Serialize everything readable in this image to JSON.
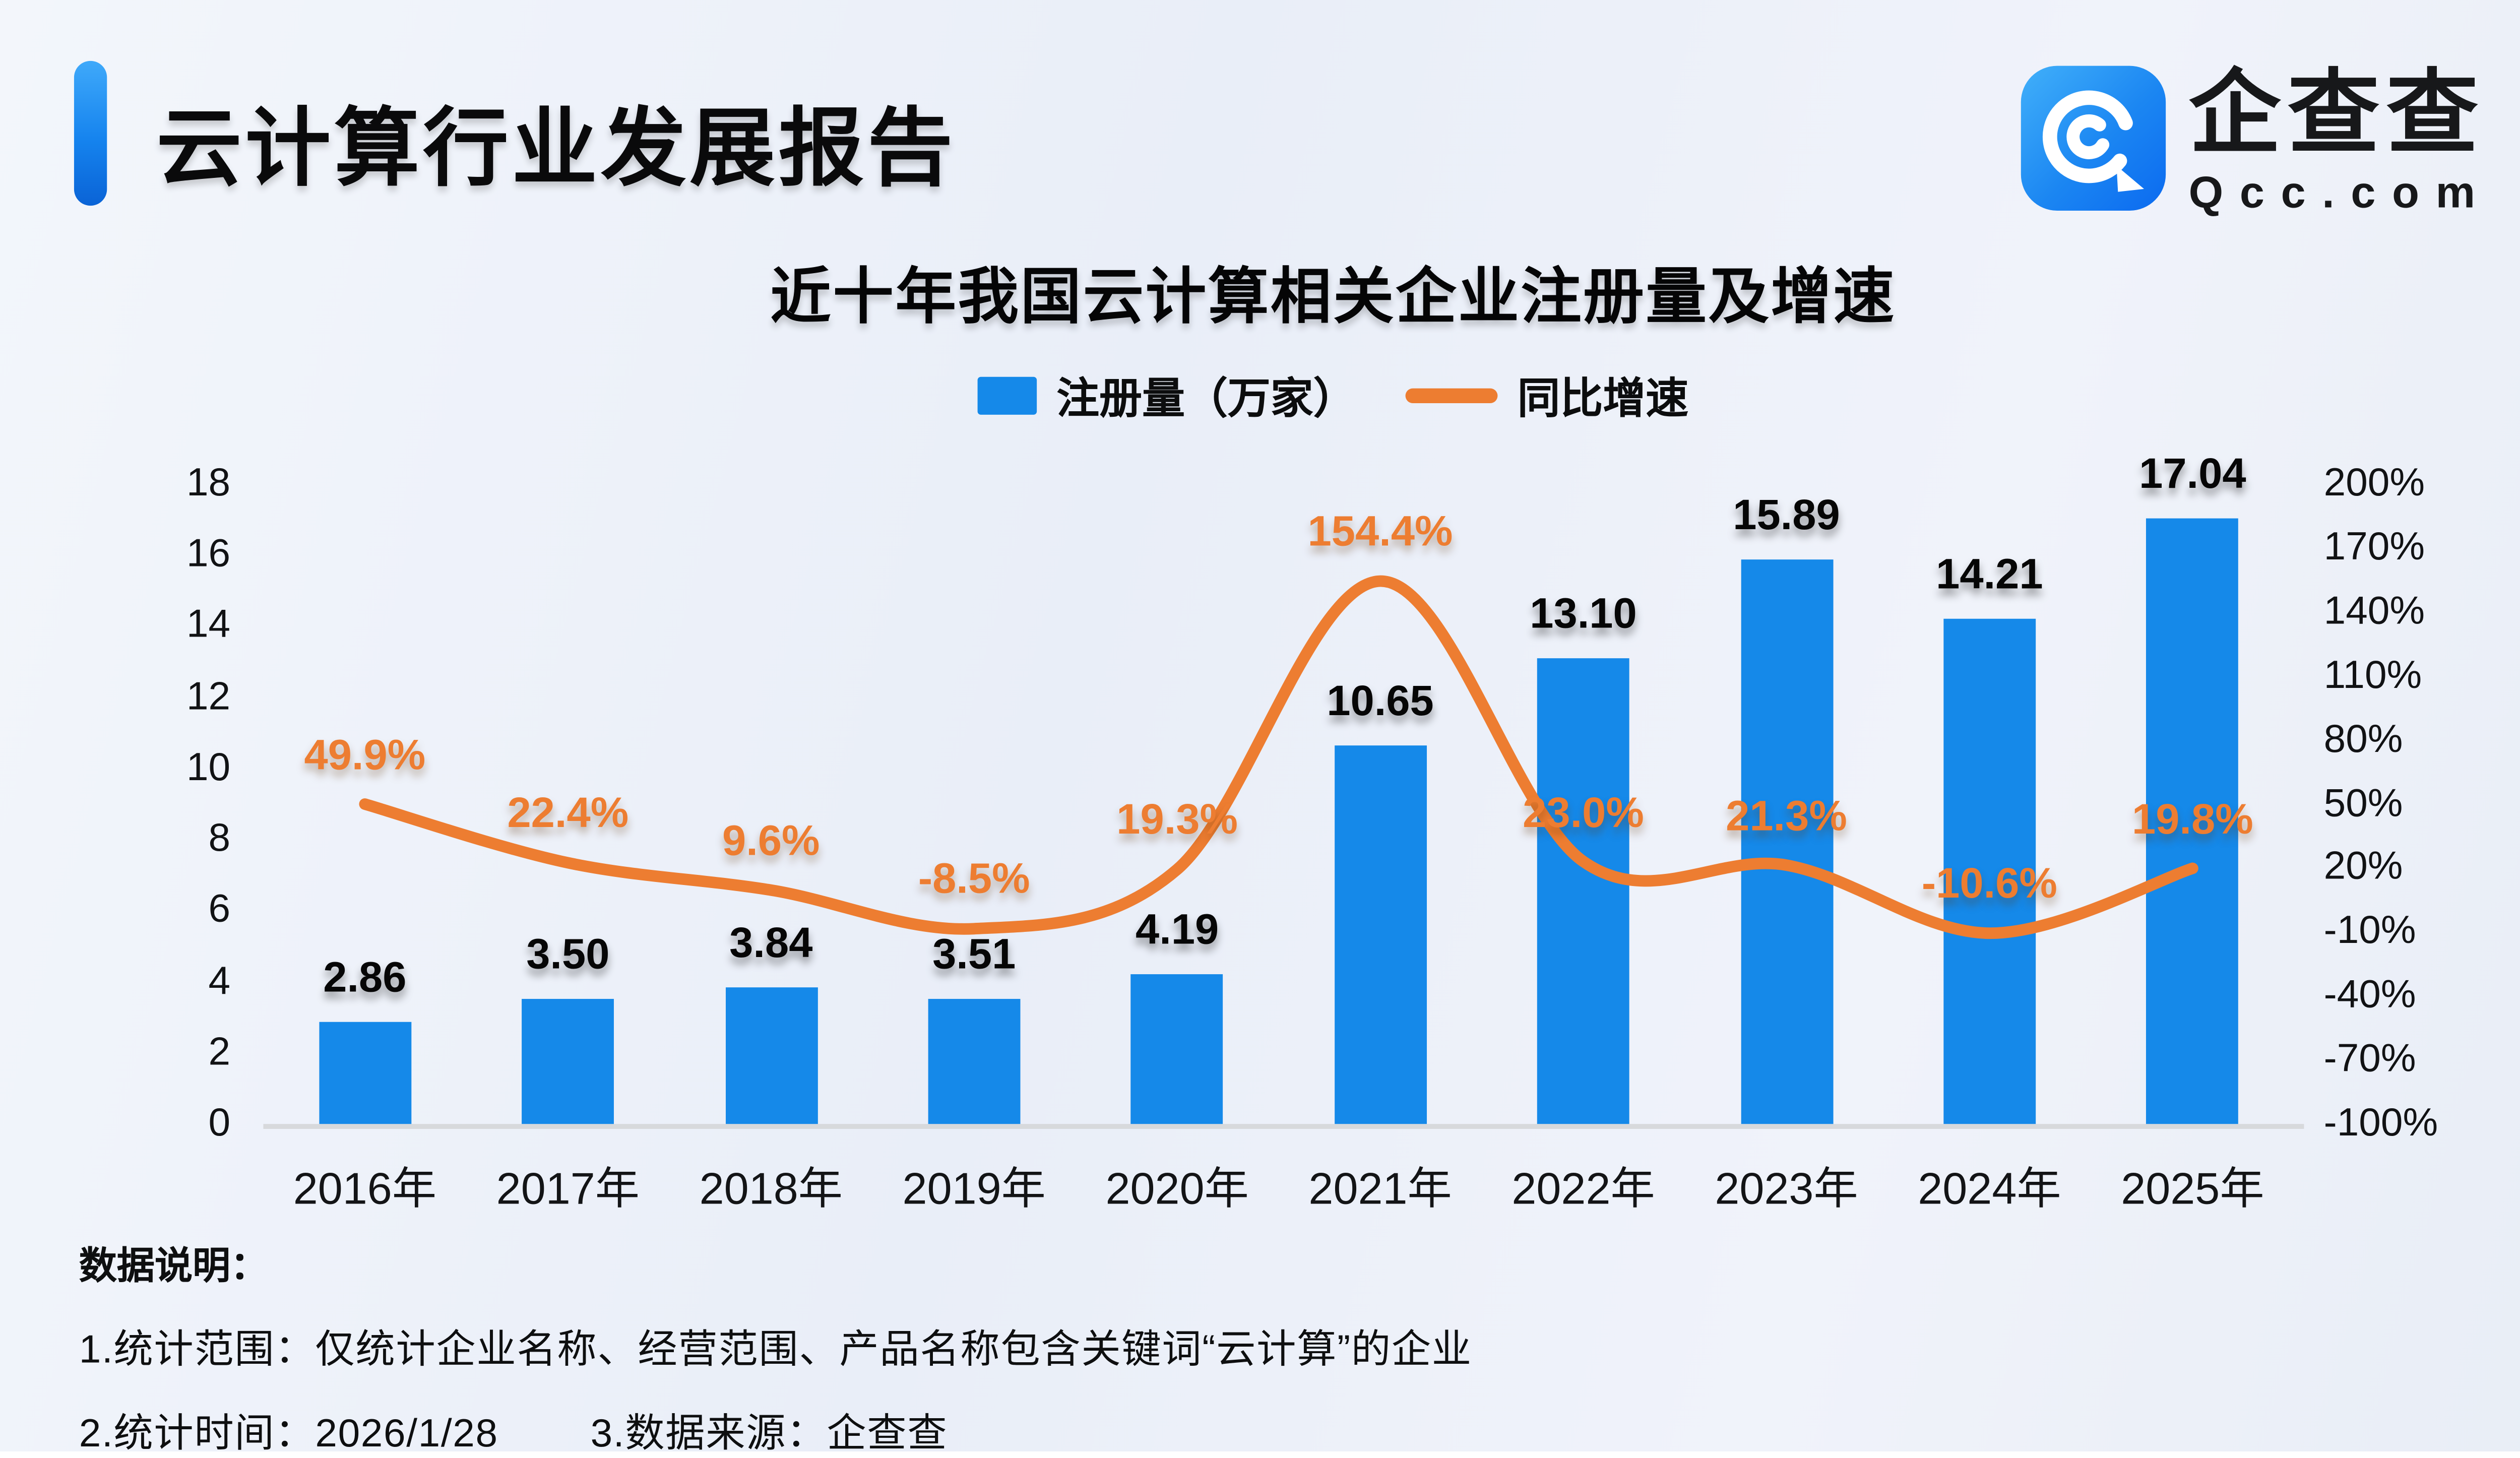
{
  "header": {
    "title": "云计算行业发展报告",
    "logo": {
      "brand": "企查查",
      "domain": "Qcc.com"
    }
  },
  "chart": {
    "title": "近十年我国云计算相关企业注册量及增速",
    "legend": [
      {
        "label": "注册量（万家）",
        "marker": "bar-swatch"
      },
      {
        "label": "同比增速",
        "marker": "line-swatch"
      }
    ]
  },
  "chart_data": {
    "type": "bar",
    "title": "近十年我国云计算相关企业注册量及增速",
    "categories": [
      "2016年",
      "2017年",
      "2018年",
      "2019年",
      "2020年",
      "2021年",
      "2022年",
      "2023年",
      "2024年",
      "2025年"
    ],
    "series": [
      {
        "name": "注册量（万家）",
        "type": "bar",
        "color": "#1589e9",
        "values": [
          2.86,
          3.5,
          3.84,
          3.51,
          4.19,
          10.65,
          13.1,
          15.89,
          14.21,
          17.04
        ],
        "labels": [
          "2.86",
          "3.50",
          "3.84",
          "3.51",
          "4.19",
          "10.65",
          "13.10",
          "15.89",
          "14.21",
          "17.04"
        ]
      },
      {
        "name": "同比增速",
        "type": "line",
        "color": "#ed7d31",
        "values": [
          49.9,
          22.4,
          9.6,
          -8.5,
          19.3,
          154.4,
          23.0,
          21.3,
          -10.6,
          19.8
        ],
        "labels": [
          "49.9%",
          "22.4%",
          "9.6%",
          "-8.5%",
          "19.3%",
          "154.4%",
          "23.0%",
          "21.3%",
          "-10.6%",
          "19.8%"
        ]
      }
    ],
    "left_axis": {
      "min": 0,
      "max": 18,
      "ticks": [
        "18",
        "16",
        "14",
        "12",
        "10",
        "8",
        "6",
        "4",
        "2",
        "0"
      ]
    },
    "right_axis": {
      "min": -100,
      "max": 200,
      "ticks": [
        "200%",
        "170%",
        "140%",
        "110%",
        "80%",
        "50%",
        "20%",
        "-10%",
        "-40%",
        "-70%",
        "-100%"
      ]
    },
    "grid": false,
    "legend_position": "top"
  },
  "footer": {
    "heading": "数据说明：",
    "notes": [
      "1.统计范围：仅统计企业名称、经营范围、产品名称包含关键词“云计算”的企业",
      "2.统计时间：2026/1/28",
      "3.数据来源：企查查"
    ]
  }
}
